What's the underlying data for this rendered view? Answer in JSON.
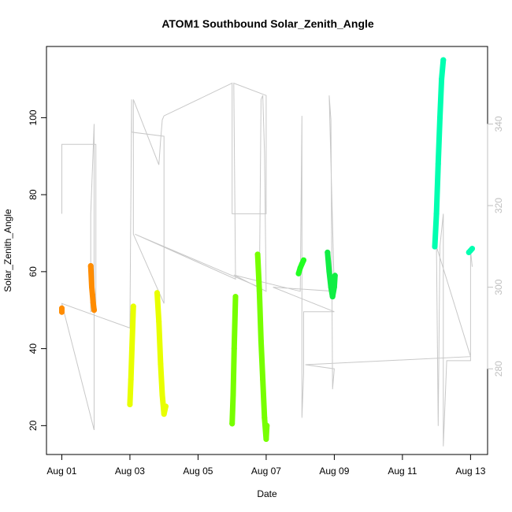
{
  "chart_data": {
    "type": "scatter",
    "title": "ATOM1 Southbound Solar_Zenith_Angle",
    "xlabel": "Date",
    "ylabel": "Solar_Zenith_Angle",
    "x_ticks": [
      "Aug 01",
      "Aug 03",
      "Aug 05",
      "Aug 07",
      "Aug 09",
      "Aug 11",
      "Aug 13"
    ],
    "x_tick_days": [
      1,
      3,
      5,
      7,
      9,
      11,
      13
    ],
    "y_ticks": [
      20,
      40,
      60,
      80,
      100
    ],
    "y2_ticks": [
      280,
      300,
      320,
      340
    ],
    "xlim_days": [
      0.55,
      13.5
    ],
    "ylim": [
      12.5,
      118.5
    ],
    "y2lim": [
      259,
      359
    ],
    "colors": {
      "axis": "#000000",
      "secondary_axis": "#c0c0c0",
      "secondary_line": "#c8c8c8"
    },
    "series": [
      {
        "color": "#ff8c00",
        "points": [
          [
            1.0,
            49.5
          ],
          [
            1.0,
            50.5
          ]
        ]
      },
      {
        "color": "#ff8c00",
        "points": [
          [
            1.85,
            61.5
          ],
          [
            1.88,
            56.0
          ],
          [
            1.9,
            54.0
          ],
          [
            1.92,
            52.0
          ],
          [
            1.95,
            50.0
          ]
        ]
      },
      {
        "color": "#e8ff00",
        "points": [
          [
            3.0,
            25.5
          ],
          [
            3.03,
            32.0
          ],
          [
            3.06,
            40.0
          ],
          [
            3.1,
            51.0
          ]
        ]
      },
      {
        "color": "#e8ff00",
        "points": [
          [
            3.8,
            54.5
          ],
          [
            3.85,
            47.0
          ],
          [
            3.9,
            36.0
          ],
          [
            3.95,
            28.0
          ],
          [
            4.0,
            23.0
          ],
          [
            4.05,
            25.0
          ]
        ]
      },
      {
        "color": "#77ff00",
        "points": [
          [
            6.0,
            20.5
          ],
          [
            6.03,
            28.0
          ],
          [
            6.06,
            40.0
          ],
          [
            6.1,
            53.5
          ]
        ]
      },
      {
        "color": "#77ff00",
        "points": [
          [
            6.75,
            64.5
          ],
          [
            6.8,
            55.0
          ],
          [
            6.85,
            42.0
          ],
          [
            6.9,
            32.0
          ],
          [
            6.95,
            22.0
          ],
          [
            7.0,
            16.5
          ],
          [
            7.02,
            20.0
          ]
        ]
      },
      {
        "color": "#22ff22",
        "points": [
          [
            7.95,
            59.5
          ],
          [
            8.0,
            61.0
          ],
          [
            8.05,
            62.0
          ],
          [
            8.1,
            63.0
          ]
        ]
      },
      {
        "color": "#11ee44",
        "points": [
          [
            8.8,
            65.0
          ],
          [
            8.85,
            60.0
          ],
          [
            8.9,
            56.0
          ],
          [
            8.95,
            53.5
          ],
          [
            9.0,
            56.0
          ],
          [
            9.02,
            59.0
          ]
        ]
      },
      {
        "color": "#00ffb0",
        "points": [
          [
            11.95,
            66.5
          ],
          [
            12.0,
            75.0
          ],
          [
            12.05,
            88.0
          ],
          [
            12.1,
            100.0
          ],
          [
            12.15,
            110.0
          ],
          [
            12.2,
            115.0
          ]
        ]
      },
      {
        "color": "#00ffb0",
        "points": [
          [
            12.95,
            65.0
          ],
          [
            13.0,
            65.5
          ],
          [
            13.05,
            66.0
          ]
        ]
      }
    ],
    "secondary_series": {
      "name": "",
      "points": [
        [
          1.0,
          318
        ],
        [
          1.0,
          335
        ],
        [
          2.0,
          335
        ],
        [
          2.0,
          295
        ],
        [
          1.85,
          294
        ],
        [
          1.85,
          318
        ],
        [
          1.95,
          340
        ],
        [
          1.95,
          265
        ],
        [
          1.0,
          296
        ],
        [
          3.0,
          290
        ],
        [
          3.05,
          346
        ],
        [
          3.05,
          338
        ],
        [
          4.0,
          337
        ],
        [
          4.0,
          296
        ],
        [
          3.1,
          313
        ],
        [
          3.1,
          346
        ],
        [
          3.85,
          330
        ],
        [
          3.9,
          336
        ],
        [
          3.95,
          341
        ],
        [
          4.0,
          342
        ],
        [
          6.0,
          350
        ],
        [
          6.0,
          318
        ],
        [
          7.0,
          318
        ],
        [
          7.0,
          347
        ],
        [
          6.05,
          350
        ],
        [
          6.1,
          302
        ],
        [
          3.15,
          313
        ],
        [
          6.8,
          300
        ],
        [
          6.85,
          346
        ],
        [
          6.9,
          347
        ],
        [
          6.95,
          333
        ],
        [
          7.0,
          299
        ],
        [
          6.05,
          303
        ],
        [
          8.0,
          299
        ],
        [
          8.05,
          342
        ],
        [
          8.05,
          268
        ],
        [
          8.1,
          279
        ],
        [
          8.1,
          294
        ],
        [
          9.0,
          294
        ],
        [
          7.2,
          300
        ],
        [
          9.0,
          299
        ],
        [
          8.85,
          347
        ],
        [
          8.9,
          341
        ],
        [
          8.95,
          275
        ],
        [
          9.0,
          280
        ],
        [
          8.15,
          281
        ],
        [
          13.0,
          283
        ],
        [
          12.0,
          310
        ],
        [
          12.05,
          266
        ],
        [
          12.1,
          310
        ],
        [
          12.2,
          318
        ],
        [
          12.2,
          261
        ],
        [
          12.3,
          282
        ],
        [
          13.0,
          282
        ],
        [
          13.0,
          309
        ],
        [
          13.05,
          305
        ]
      ]
    }
  }
}
